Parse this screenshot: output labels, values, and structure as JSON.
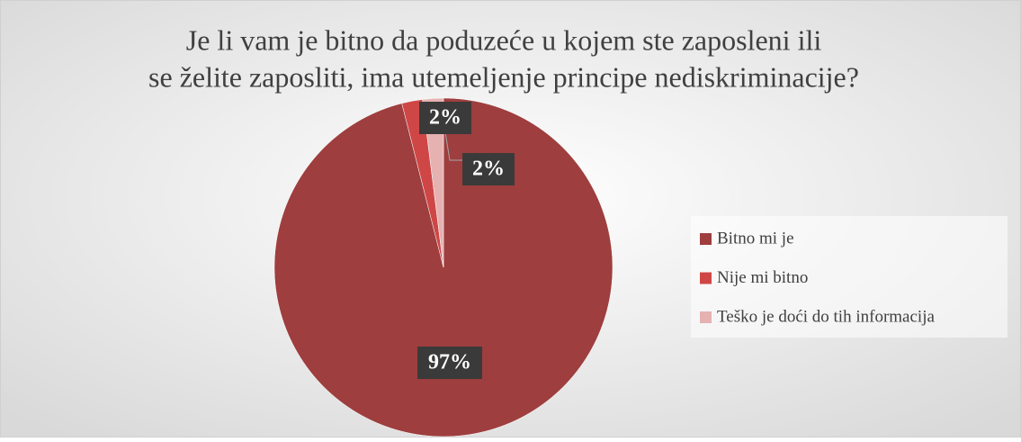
{
  "chart_data": {
    "type": "pie",
    "title": "Je li vam je bitno da poduzeće u kojem ste zaposleni ili se želite zaposliti, ima utemeljenje principe nediskriminacije?",
    "categories": [
      "Bitno mi je",
      "Nije mi bitno",
      "Teško je doći do tih informacija"
    ],
    "values": [
      97,
      2,
      2
    ],
    "value_labels": [
      "97%",
      "2%",
      "2%"
    ],
    "colors": [
      "#9e3e3e",
      "#cf4646",
      "#e6b1b1"
    ],
    "legend": "right"
  }
}
